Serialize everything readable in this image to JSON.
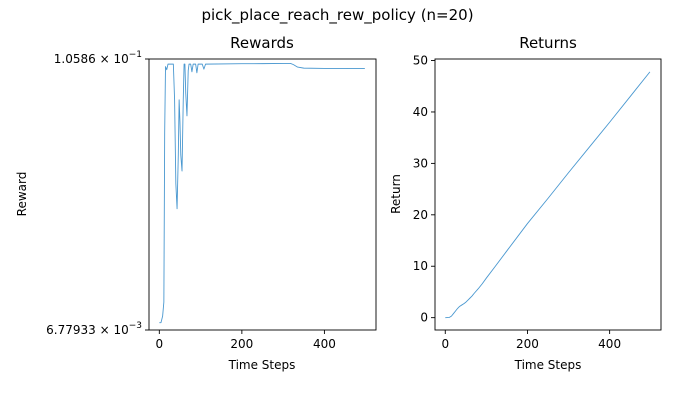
{
  "figure": {
    "suptitle": "pick_place_reach_rew_policy (n=20)",
    "line_color": "#4a98d0"
  },
  "chart_data": [
    {
      "type": "line",
      "title": "Rewards",
      "xlabel": "Time Steps",
      "ylabel": "Reward",
      "yscale": "log",
      "xlim": [
        -25,
        525
      ],
      "ylim": [
        0.00677933,
        0.10586
      ],
      "xticks": [
        0,
        200,
        400
      ],
      "yticks": [
        {
          "value": 0.10586,
          "mantissa": "1.0586",
          "times": "×",
          "base": "10",
          "exp": "−1"
        },
        {
          "value": 0.00677933,
          "mantissa": "6.77933",
          "times": "×",
          "base": "10",
          "exp": "−3"
        }
      ],
      "grid": false,
      "series": [
        {
          "x": [
            0,
            4,
            8,
            11,
            13,
            15,
            18,
            21,
            25,
            30,
            34,
            37,
            40,
            43,
            46,
            48,
            50,
            52,
            55,
            58,
            60,
            62,
            64,
            67,
            70,
            72,
            74,
            76,
            79,
            82,
            85,
            88,
            91,
            94,
            97,
            100,
            104,
            108,
            112,
            200,
            250,
            300,
            318,
            325,
            335,
            350,
            400,
            450,
            498
          ],
          "y": [
            0.0073,
            0.0073,
            0.0078,
            0.009,
            0.05,
            0.098,
            0.095,
            0.1005,
            0.1005,
            0.1005,
            0.1005,
            0.07,
            0.03,
            0.0232,
            0.04,
            0.07,
            0.056,
            0.04,
            0.034,
            0.07,
            0.1005,
            0.1005,
            0.075,
            0.0595,
            0.094,
            0.1005,
            0.1005,
            0.1005,
            0.093,
            0.1005,
            0.1005,
            0.1005,
            0.092,
            0.1005,
            0.1005,
            0.1005,
            0.1005,
            0.0955,
            0.1005,
            0.1009,
            0.101,
            0.1012,
            0.1012,
            0.1,
            0.0975,
            0.0965,
            0.0962,
            0.0962,
            0.0961
          ]
        }
      ]
    },
    {
      "type": "line",
      "title": "Returns",
      "xlabel": "Time Steps",
      "ylabel": "Return",
      "xlim": [
        -25,
        525
      ],
      "ylim": [
        -2.4,
        50.3
      ],
      "xticks": [
        0,
        200,
        400
      ],
      "yticks": [
        0,
        10,
        20,
        30,
        40,
        50
      ],
      "grid": false,
      "series": [
        {
          "x": [
            0,
            10,
            15,
            20,
            25,
            30,
            35,
            40,
            45,
            50,
            55,
            60,
            65,
            70,
            80,
            90,
            100,
            120,
            150,
            200,
            250,
            300,
            350,
            400,
            450,
            498
          ],
          "y": [
            0,
            0.05,
            0.3,
            0.8,
            1.3,
            1.8,
            2.2,
            2.45,
            2.7,
            3.0,
            3.4,
            3.8,
            4.2,
            4.7,
            5.6,
            6.6,
            7.7,
            9.8,
            13.0,
            18.3,
            23.2,
            28.2,
            33.1,
            38.0,
            43.0,
            47.8
          ]
        }
      ]
    }
  ]
}
